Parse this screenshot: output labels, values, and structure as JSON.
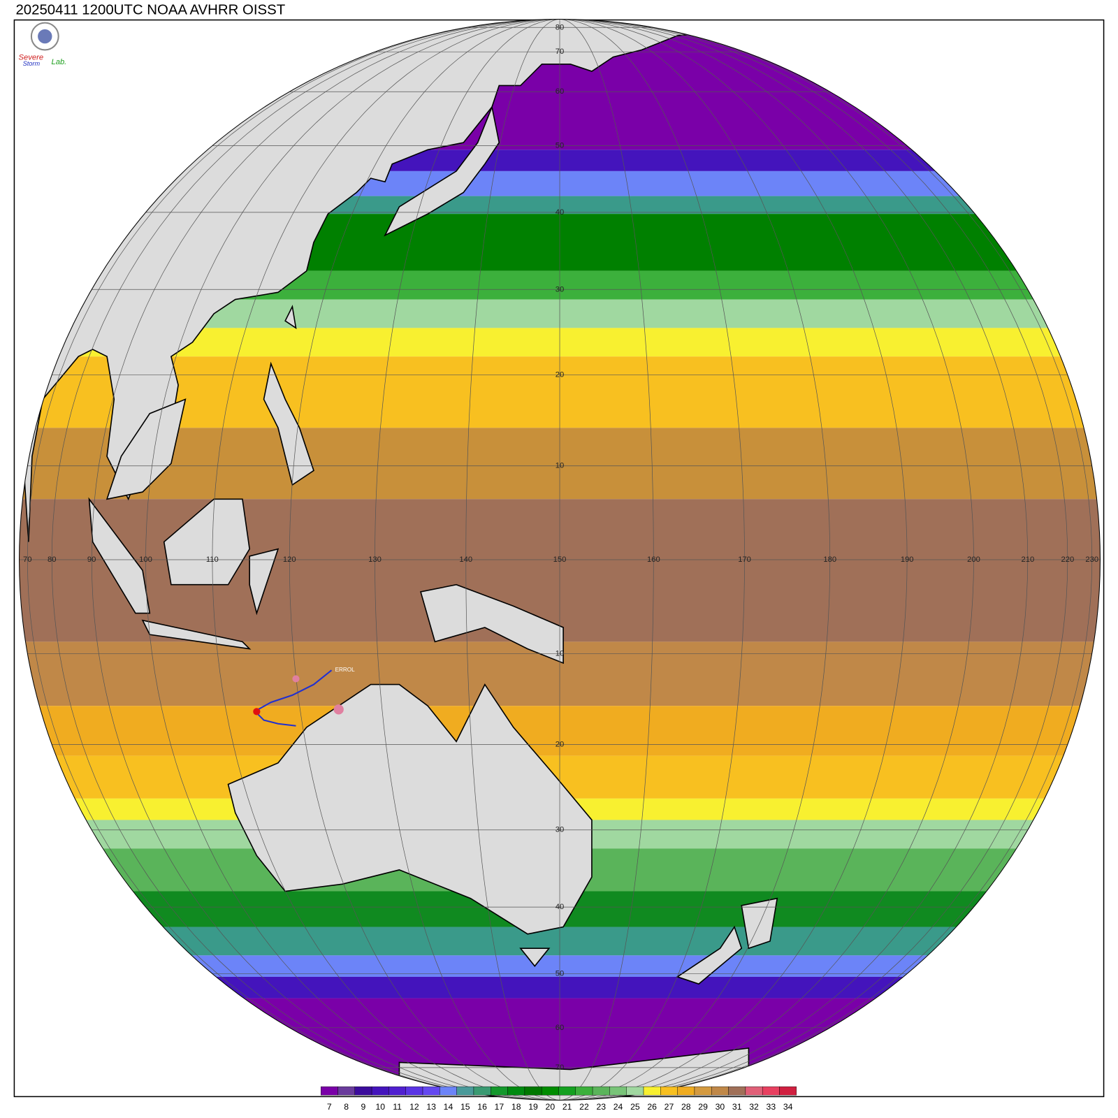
{
  "title": "20250411 1200UTC NOAA AVHRR OISST",
  "logo": {
    "line1": "Severe",
    "line2": "Storm",
    "lab": "Lab."
  },
  "storm_label": "ERROL",
  "lat_labels_north": [
    "80",
    "70",
    "60",
    "50",
    "40",
    "30",
    "20",
    "10"
  ],
  "lat_labels_south": [
    "10",
    "20",
    "30",
    "40",
    "50",
    "60",
    "70"
  ],
  "lon_labels": [
    "70",
    "80",
    "90",
    "100",
    "110",
    "120",
    "130",
    "140",
    "150",
    "160",
    "170",
    "180",
    "190",
    "200",
    "210",
    "220",
    "230"
  ],
  "colorbar": {
    "values": [
      7,
      8,
      9,
      10,
      11,
      12,
      13,
      14,
      15,
      16,
      17,
      18,
      19,
      20,
      21,
      22,
      23,
      24,
      25,
      26,
      27,
      28,
      29,
      30,
      31,
      32,
      33,
      34
    ],
    "colors": [
      "#7a00a8",
      "#6a3c9c",
      "#3c0c9c",
      "#4414bc",
      "#5020d0",
      "#5a34e4",
      "#6448f0",
      "#6c84f8",
      "#4a9a9a",
      "#3a9a72",
      "#14982c",
      "#008a10",
      "#007800",
      "#008c00",
      "#14a020",
      "#3cb03c",
      "#5ab45a",
      "#78c478",
      "#a0d8a0",
      "#f8f030",
      "#f8c020",
      "#f0ac20",
      "#d49a40",
      "#c08848",
      "#a07058",
      "#e06078",
      "#e84060",
      "#d02040"
    ]
  }
}
